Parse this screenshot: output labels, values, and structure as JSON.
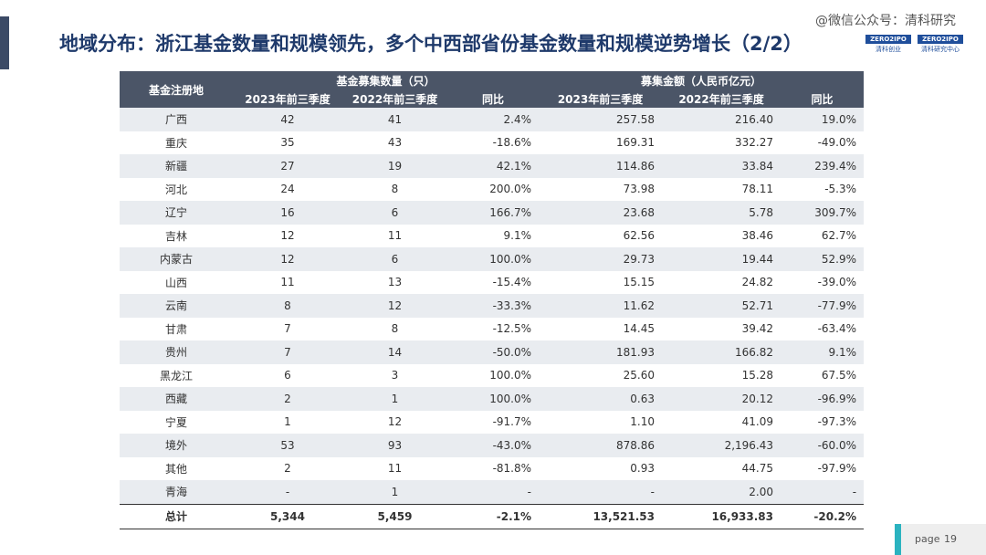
{
  "header": {
    "title": "地域分布：浙江基金数量和规模领先，多个中西部省份基金数量和规模逆势增长（2/2）",
    "watermark": "@微信公众号：清科研究",
    "logos": [
      {
        "mark": "ZERO2IPO",
        "caption": "清科创业"
      },
      {
        "mark": "ZERO2IPO",
        "caption": "清科研究中心"
      }
    ]
  },
  "table": {
    "first_header": "基金注册地",
    "groups": [
      "基金募集数量（只）",
      "募集金额（人民币亿元）"
    ],
    "subheaders": [
      "2023年前三季度",
      "2022年前三季度",
      "同比",
      "2023年前三季度",
      "2022年前三季度",
      "同比"
    ],
    "rows": [
      [
        "广西",
        "42",
        "41",
        "2.4%",
        "257.58",
        "216.40",
        "19.0%"
      ],
      [
        "重庆",
        "35",
        "43",
        "-18.6%",
        "169.31",
        "332.27",
        "-49.0%"
      ],
      [
        "新疆",
        "27",
        "19",
        "42.1%",
        "114.86",
        "33.84",
        "239.4%"
      ],
      [
        "河北",
        "24",
        "8",
        "200.0%",
        "73.98",
        "78.11",
        "-5.3%"
      ],
      [
        "辽宁",
        "16",
        "6",
        "166.7%",
        "23.68",
        "5.78",
        "309.7%"
      ],
      [
        "吉林",
        "12",
        "11",
        "9.1%",
        "62.56",
        "38.46",
        "62.7%"
      ],
      [
        "内蒙古",
        "12",
        "6",
        "100.0%",
        "29.73",
        "19.44",
        "52.9%"
      ],
      [
        "山西",
        "11",
        "13",
        "-15.4%",
        "15.15",
        "24.82",
        "-39.0%"
      ],
      [
        "云南",
        "8",
        "12",
        "-33.3%",
        "11.62",
        "52.71",
        "-77.9%"
      ],
      [
        "甘肃",
        "7",
        "8",
        "-12.5%",
        "14.45",
        "39.42",
        "-63.4%"
      ],
      [
        "贵州",
        "7",
        "14",
        "-50.0%",
        "181.93",
        "166.82",
        "9.1%"
      ],
      [
        "黑龙江",
        "6",
        "3",
        "100.0%",
        "25.60",
        "15.28",
        "67.5%"
      ],
      [
        "西藏",
        "2",
        "1",
        "100.0%",
        "0.63",
        "20.12",
        "-96.9%"
      ],
      [
        "宁夏",
        "1",
        "12",
        "-91.7%",
        "1.10",
        "41.09",
        "-97.3%"
      ],
      [
        "境外",
        "53",
        "93",
        "-43.0%",
        "878.86",
        "2,196.43",
        "-60.0%"
      ],
      [
        "其他",
        "2",
        "11",
        "-81.8%",
        "0.93",
        "44.75",
        "-97.9%"
      ],
      [
        "青海",
        "-",
        "1",
        "-",
        "-",
        "2.00",
        "-"
      ]
    ],
    "total": [
      "总计",
      "5,344",
      "5,459",
      "-2.1%",
      "13,521.53",
      "16,933.83",
      "-20.2%"
    ]
  },
  "footer": {
    "page_label": "page",
    "page_number": "19"
  }
}
